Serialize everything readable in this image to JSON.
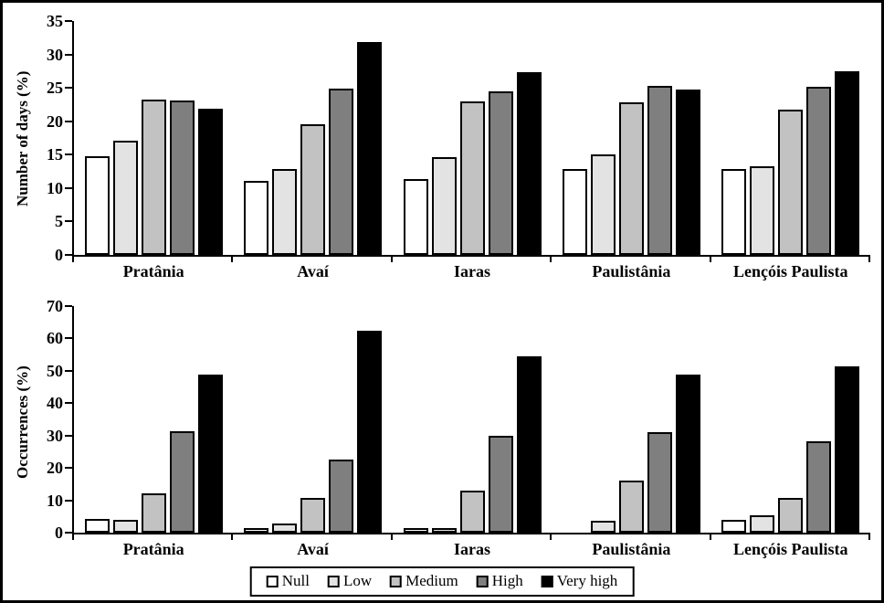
{
  "figure": {
    "background": "#ffffff",
    "border_color": "#000000"
  },
  "series_colors": {
    "Null": "#ffffff",
    "Low": "#e3e3e3",
    "Medium": "#c2c2c2",
    "High": "#7f7f7f",
    "Very high": "#000000"
  },
  "legend": {
    "position": "bottom-center",
    "labels": [
      "Null",
      "Low",
      "Medium",
      "High",
      "Very high"
    ]
  },
  "chart_data": [
    {
      "type": "bar",
      "title": "",
      "xlabel": "",
      "ylabel": "Number of days (%)",
      "ylim": [
        0,
        35
      ],
      "yticks": [
        0,
        5,
        10,
        15,
        20,
        25,
        30,
        35
      ],
      "grid": false,
      "legend_position": "shared-bottom",
      "categories": [
        "Pratânia",
        "Avaí",
        "Iaras",
        "Paulistânia",
        "Lençóis Paulista"
      ],
      "series": [
        {
          "name": "Null",
          "color": "#ffffff",
          "values": [
            14.7,
            11.1,
            11.3,
            12.8,
            12.9
          ]
        },
        {
          "name": "Low",
          "color": "#e3e3e3",
          "values": [
            17.1,
            12.9,
            14.6,
            15.0,
            13.2
          ]
        },
        {
          "name": "Medium",
          "color": "#c2c2c2",
          "values": [
            23.3,
            19.6,
            23.0,
            22.9,
            21.8
          ]
        },
        {
          "name": "High",
          "color": "#7f7f7f",
          "values": [
            23.1,
            24.9,
            24.5,
            25.3,
            25.1
          ]
        },
        {
          "name": "Very high",
          "color": "#000000",
          "values": [
            21.9,
            31.9,
            27.3,
            24.7,
            27.5
          ]
        }
      ]
    },
    {
      "type": "bar",
      "title": "",
      "xlabel": "",
      "ylabel": "Occurrences (%)",
      "ylim": [
        0,
        70
      ],
      "yticks": [
        0,
        10,
        20,
        30,
        40,
        50,
        60,
        70
      ],
      "grid": false,
      "legend_position": "shared-bottom",
      "categories": [
        "Pratânia",
        "Avaí",
        "Iaras",
        "Paulistânia",
        "Lençóis Paulista"
      ],
      "series": [
        {
          "name": "Null",
          "color": "#ffffff",
          "values": [
            4.1,
            1.4,
            1.4,
            0,
            3.9
          ]
        },
        {
          "name": "Low",
          "color": "#e3e3e3",
          "values": [
            4.0,
            2.7,
            1.3,
            3.8,
            5.5
          ]
        },
        {
          "name": "Medium",
          "color": "#c2c2c2",
          "values": [
            12.1,
            10.6,
            13.1,
            16.1,
            10.8
          ]
        },
        {
          "name": "High",
          "color": "#7f7f7f",
          "values": [
            31.2,
            22.7,
            29.9,
            31.0,
            28.3
          ]
        },
        {
          "name": "Very high",
          "color": "#000000",
          "values": [
            48.9,
            62.5,
            54.4,
            48.7,
            51.5
          ]
        }
      ]
    }
  ]
}
